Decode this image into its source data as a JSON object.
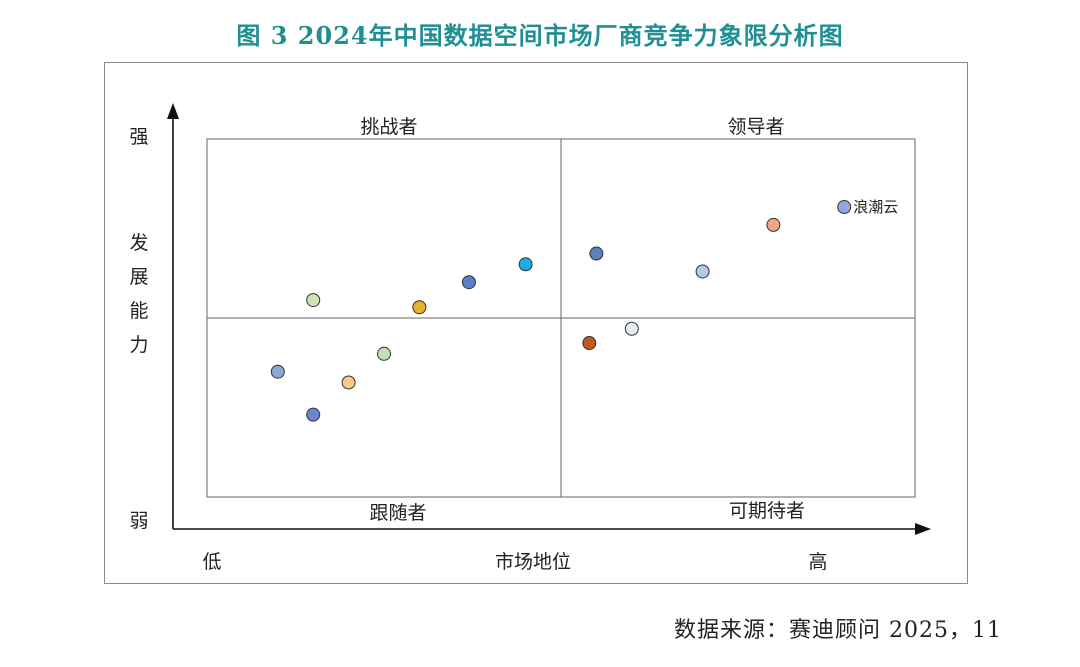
{
  "title": "图 3  2024年中国数据空间市场厂商竞争力象限分析图",
  "source": "数据来源：赛迪顾问   2025，11",
  "colors": {
    "title": "#1f8f93",
    "text": "#222222",
    "grid": "#666666",
    "axis": "#111111",
    "point_stroke": "#333333"
  },
  "chart_data": {
    "type": "scatter",
    "xlabel": "市场地位",
    "ylabel": "发展能力",
    "x_low_label": "低",
    "x_high_label": "高",
    "y_high_label": "强",
    "y_low_label": "弱",
    "xlim": [
      0,
      10
    ],
    "ylim": [
      0,
      10
    ],
    "divider_x": 5,
    "divider_y": 5,
    "quadrant_labels": {
      "top_left": "挑战者",
      "top_right": "领导者",
      "bottom_left": "跟随者",
      "bottom_right": "可期待者"
    },
    "points": [
      {
        "x": 9.0,
        "y": 8.1,
        "color": "#8fa8dc",
        "label": "浪潮云"
      },
      {
        "x": 8.0,
        "y": 7.6,
        "color": "#f2a582",
        "label": ""
      },
      {
        "x": 7.0,
        "y": 6.3,
        "color": "#b3c7ec",
        "label": ""
      },
      {
        "x": 5.5,
        "y": 6.8,
        "color": "#5b82bf",
        "label": ""
      },
      {
        "x": 4.5,
        "y": 6.5,
        "color": "#1aaee5",
        "label": ""
      },
      {
        "x": 3.7,
        "y": 6.0,
        "color": "#5b7fc6",
        "label": ""
      },
      {
        "x": 3.0,
        "y": 5.3,
        "color": "#e7b12a",
        "label": ""
      },
      {
        "x": 1.5,
        "y": 5.5,
        "color": "#cde3b8",
        "label": ""
      },
      {
        "x": 6.0,
        "y": 4.7,
        "color": "#e6edf7",
        "label": ""
      },
      {
        "x": 5.4,
        "y": 4.3,
        "color": "#c05a1c",
        "label": ""
      },
      {
        "x": 2.5,
        "y": 4.0,
        "color": "#c6e0b4",
        "label": ""
      },
      {
        "x": 2.0,
        "y": 3.2,
        "color": "#f9c986",
        "label": ""
      },
      {
        "x": 1.0,
        "y": 3.5,
        "color": "#8da6d6",
        "label": ""
      },
      {
        "x": 1.5,
        "y": 2.3,
        "color": "#7085d0",
        "label": ""
      }
    ]
  }
}
